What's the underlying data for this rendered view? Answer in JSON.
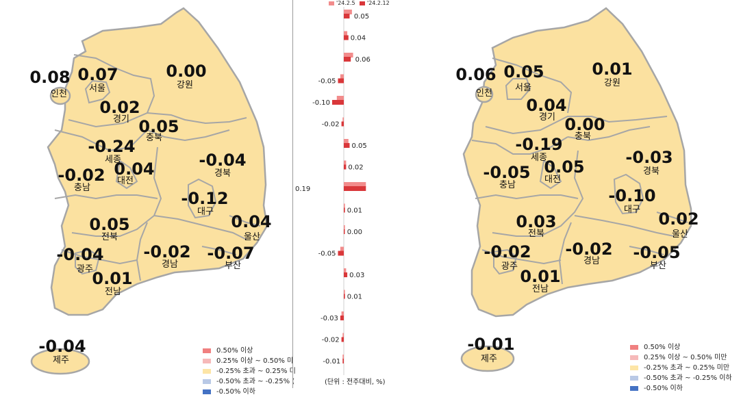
{
  "colors": {
    "map_fill": "#fbe1a0",
    "border": "#a6a6a6",
    "bar_prev": "#f28c8c",
    "bar_curr": "#d9373a",
    "legend": [
      "#f08080",
      "#f6b9b9",
      "#fde5a6",
      "#b9c9e6",
      "#4472c4"
    ]
  },
  "left_map": {
    "regions": [
      {
        "name": "인천",
        "value": "0.08"
      },
      {
        "name": "서울",
        "value": "0.07"
      },
      {
        "name": "강원",
        "value": "0.00"
      },
      {
        "name": "경기",
        "value": "0.02"
      },
      {
        "name": "충북",
        "value": "0.05"
      },
      {
        "name": "세종",
        "value": "-0.24"
      },
      {
        "name": "대전",
        "value": "0.04"
      },
      {
        "name": "충남",
        "value": "-0.02"
      },
      {
        "name": "경북",
        "value": "-0.04"
      },
      {
        "name": "대구",
        "value": "-0.12"
      },
      {
        "name": "울산",
        "value": "0.04"
      },
      {
        "name": "전북",
        "value": "0.05"
      },
      {
        "name": "광주",
        "value": "-0.04"
      },
      {
        "name": "경남",
        "value": "-0.02"
      },
      {
        "name": "부산",
        "value": "-0.07"
      },
      {
        "name": "전남",
        "value": "0.01"
      },
      {
        "name": "제주",
        "value": "-0.04"
      }
    ],
    "legend": [
      "0.50% 이상",
      "0.25% 이상 ~ 0.50% 미",
      "-0.25% 초과 ~ 0.25% 미",
      "-0.50% 초과 ~ -0.25% (",
      "-0.50% 이하"
    ]
  },
  "right_map": {
    "regions": [
      {
        "name": "인천",
        "value": "0.06"
      },
      {
        "name": "서울",
        "value": "0.05"
      },
      {
        "name": "강원",
        "value": "0.01"
      },
      {
        "name": "경기",
        "value": "0.04"
      },
      {
        "name": "충북",
        "value": "0.00"
      },
      {
        "name": "세종",
        "value": "-0.19"
      },
      {
        "name": "대전",
        "value": "0.05"
      },
      {
        "name": "충남",
        "value": "-0.05"
      },
      {
        "name": "경북",
        "value": "-0.03"
      },
      {
        "name": "대구",
        "value": "-0.10"
      },
      {
        "name": "울산",
        "value": "0.02"
      },
      {
        "name": "전북",
        "value": "0.03"
      },
      {
        "name": "광주",
        "value": "-0.02"
      },
      {
        "name": "경남",
        "value": "-0.02"
      },
      {
        "name": "부산",
        "value": "-0.05"
      },
      {
        "name": "전남",
        "value": "0.01"
      },
      {
        "name": "제주",
        "value": "-0.01"
      }
    ],
    "legend": [
      "0.50% 이상",
      "0.25% 이상 ~ 0.50% 미만",
      "-0.25% 초과 ~ 0.25% 미만",
      "-0.50% 초과 ~ -0.25% 이하",
      "-0.50% 이하"
    ]
  },
  "bar_chart": {
    "legend_prev": "'24.2.5",
    "legend_curr": "'24.2.12",
    "unit": "(단위 : 전주대비, %)",
    "labels": [
      "0.05",
      "0.04",
      "0.06",
      "-0.05",
      "-0.10",
      "-0.02",
      "0.05",
      "0.02",
      "0.19",
      "0.01",
      "0.00",
      "-0.05",
      "0.03",
      "0.01",
      "-0.03",
      "-0.02",
      "-0.01"
    ]
  },
  "chart_data": {
    "type": "bar",
    "orientation": "horizontal",
    "series": [
      {
        "name": "'24.2.5",
        "values": [
          0.07,
          0.03,
          0.08,
          -0.03,
          -0.06,
          -0.01,
          0.04,
          0.02,
          0.19,
          0.01,
          0.01,
          -0.03,
          0.02,
          0.01,
          -0.02,
          -0.01,
          -0.01
        ]
      },
      {
        "name": "'24.2.12",
        "values": [
          0.05,
          0.04,
          0.06,
          -0.05,
          -0.1,
          -0.02,
          0.05,
          0.02,
          0.19,
          0.01,
          0.0,
          -0.05,
          0.03,
          0.01,
          -0.03,
          -0.02,
          -0.01
        ]
      }
    ],
    "xlabel": "(단위 : 전주대비, %)"
  }
}
